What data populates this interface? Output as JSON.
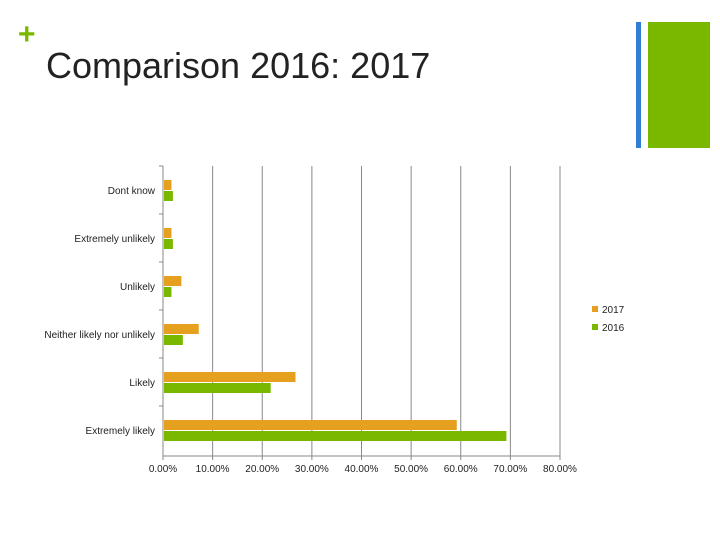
{
  "header": {
    "plus_symbol": "+",
    "title": "Comparison 2016: 2017"
  },
  "colors": {
    "accent_green": "#7ab800",
    "accent_blue": "#2e7fd1",
    "series_2017": "#e6a020",
    "series_2016": "#7ab800",
    "grid": "#888888",
    "text": "#222222"
  },
  "chart_data": {
    "type": "bar",
    "orientation": "horizontal",
    "categories": [
      "Don't know",
      "Extremely unlikely",
      "Unlikely",
      "Neither likely nor unlikely",
      "Likely",
      "Extremely likely"
    ],
    "category_labels": [
      "Dont know",
      "Extremely unlikely",
      "Unlikely",
      "Neither likely nor unlikely",
      "Likely",
      "Extremely likely"
    ],
    "series": [
      {
        "name": "2017",
        "values": [
          1.5,
          1.5,
          3.5,
          7.0,
          26.5,
          59.0
        ]
      },
      {
        "name": "2016",
        "values": [
          1.8,
          1.8,
          1.5,
          3.8,
          21.5,
          69.0
        ]
      }
    ],
    "xlim": [
      0,
      80
    ],
    "xticks": [
      "0.00%",
      "10.00%",
      "20.00%",
      "30.00%",
      "40.00%",
      "50.00%",
      "60.00%",
      "70.00%",
      "80.00%"
    ],
    "grid": true,
    "legend": "right",
    "title": "",
    "xlabel": "",
    "ylabel": ""
  }
}
